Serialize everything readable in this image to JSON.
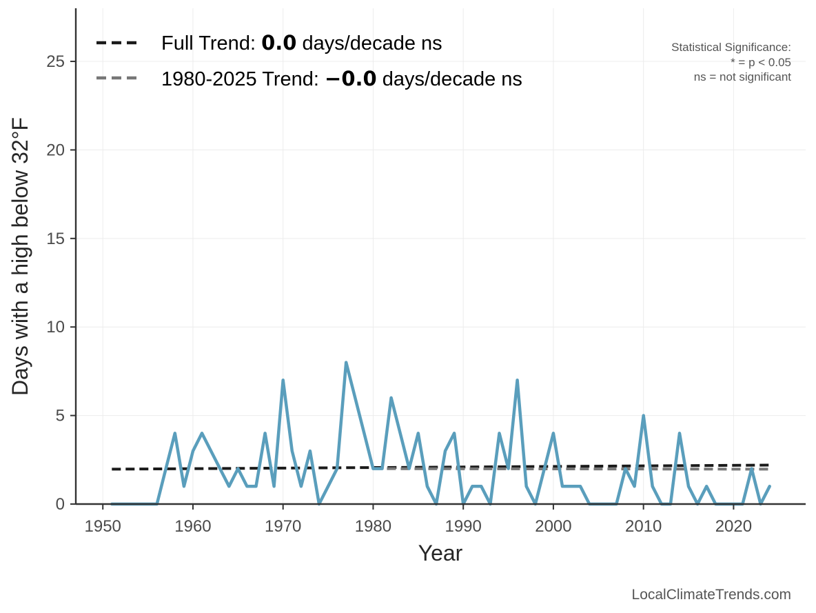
{
  "chart_data": {
    "type": "line",
    "xlabel": "Year",
    "ylabel": "Days with a high below 32°F",
    "xlim": [
      1947,
      2028
    ],
    "ylim": [
      0,
      28
    ],
    "x_ticks": [
      1950,
      1960,
      1970,
      1980,
      1990,
      2000,
      2010,
      2020
    ],
    "y_ticks": [
      0,
      5,
      10,
      15,
      20,
      25
    ],
    "grid": true,
    "series": [
      {
        "color": "#5a9ebc",
        "x": [
          1951,
          1952,
          1953,
          1954,
          1955,
          1956,
          1957,
          1958,
          1959,
          1960,
          1961,
          1962,
          1963,
          1964,
          1965,
          1966,
          1967,
          1968,
          1969,
          1970,
          1971,
          1972,
          1973,
          1974,
          1975,
          1976,
          1977,
          1978,
          1979,
          1980,
          1981,
          1982,
          1983,
          1984,
          1985,
          1986,
          1987,
          1988,
          1989,
          1990,
          1991,
          1992,
          1993,
          1994,
          1995,
          1996,
          1997,
          1998,
          1999,
          2000,
          2001,
          2002,
          2003,
          2004,
          2005,
          2006,
          2007,
          2008,
          2009,
          2010,
          2011,
          2012,
          2013,
          2014,
          2015,
          2016,
          2017,
          2018,
          2019,
          2020,
          2021,
          2022,
          2023,
          2024
        ],
        "values": [
          0,
          0,
          0,
          0,
          0,
          0,
          2,
          4,
          1,
          3,
          4,
          3,
          2,
          1,
          2,
          1,
          1,
          4,
          1,
          7,
          3,
          1,
          3,
          0,
          1,
          2,
          8,
          6,
          4,
          2,
          2,
          6,
          4,
          2,
          4,
          1,
          0,
          3,
          4,
          0,
          1,
          1,
          0,
          4,
          2,
          7,
          1,
          0,
          2,
          4,
          1,
          1,
          1,
          0,
          0,
          0,
          0,
          2,
          1,
          5,
          1,
          0,
          0,
          4,
          1,
          0,
          1,
          0,
          0,
          0,
          0,
          2,
          0,
          1
        ]
      }
    ],
    "trend_lines": [
      {
        "name": "Full Trend",
        "color": "#1a1a1a",
        "x": [
          1951,
          2024
        ],
        "y": [
          1.97,
          2.2
        ]
      },
      {
        "name": "1980-2025 Trend",
        "color": "#777777",
        "x": [
          1980,
          2024
        ],
        "y": [
          2.0,
          1.97
        ]
      }
    ],
    "legend": {
      "placement": "top-left",
      "entries": [
        {
          "prefix": "Full Trend: ",
          "value": "0.0",
          "suffix": " days/decade ns",
          "color": "#1a1a1a"
        },
        {
          "prefix": "1980-2025 Trend: ",
          "value": "−0.0",
          "suffix": " days/decade ns",
          "color": "#777777"
        }
      ]
    },
    "significance_note": [
      "Statistical Significance:",
      "* = p < 0.05",
      "ns = not significant"
    ],
    "source": "LocalClimateTrends.com"
  }
}
